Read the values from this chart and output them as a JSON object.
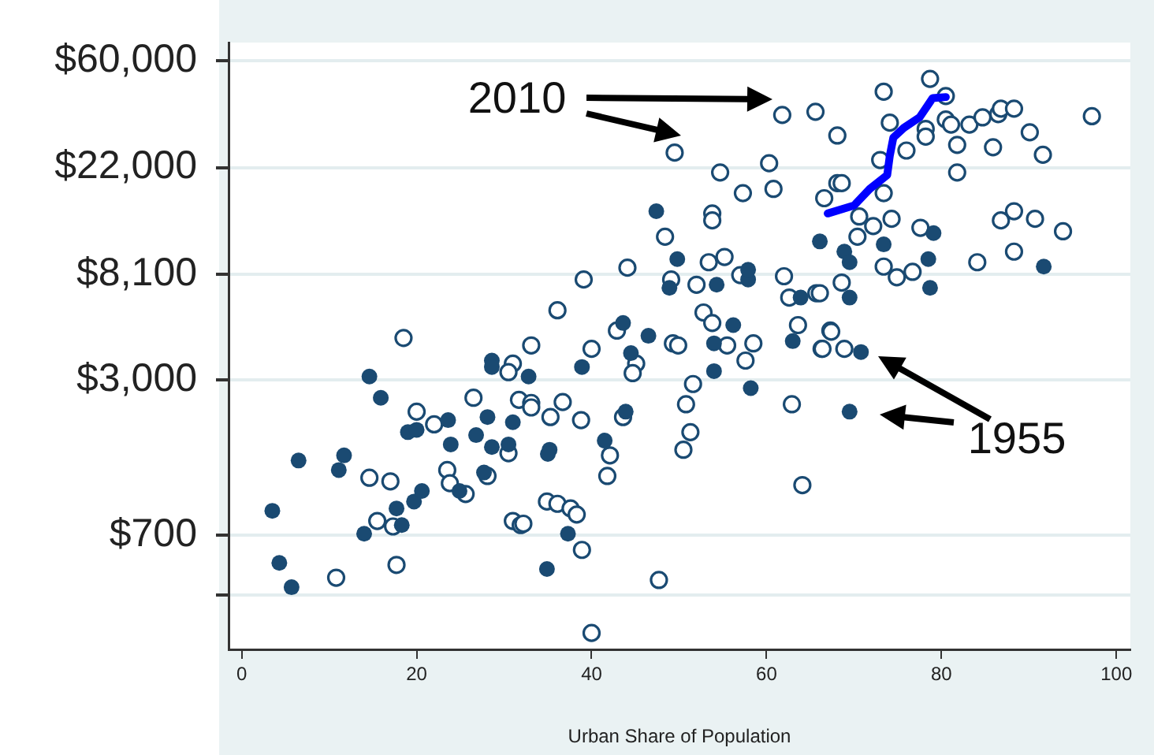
{
  "chart_data": {
    "type": "scatter",
    "xlabel": "Urban Share of Population",
    "xlim": [
      -1.5,
      101.6
    ],
    "xticks": [
      0,
      20,
      40,
      60,
      80,
      100
    ],
    "ylim": [
      240,
      71000
    ],
    "log": "y",
    "yticks": [
      {
        "value": 400,
        "label": null
      },
      {
        "value": 700,
        "label": "$700"
      },
      {
        "value": 3000,
        "label": "$3,000"
      },
      {
        "value": 8100,
        "label": "$8,100"
      },
      {
        "value": 22000,
        "label": "$22,000"
      },
      {
        "value": 60000,
        "label": "$60,000"
      }
    ],
    "grid": "y",
    "marker": "circle",
    "annotations": [
      "2010",
      "1955"
    ],
    "series": [
      {
        "type": "scatter",
        "color": "#1a4a72",
        "x": [
          18.5,
          33.1,
          31.0,
          30.5,
          26.5,
          31.7,
          33.1,
          33.1,
          20.0,
          22.0,
          30.5,
          14.6,
          17.0,
          23.5,
          23.8,
          25.6,
          28.1,
          15.5,
          17.3,
          31.0,
          31.9,
          17.7,
          10.8,
          39.1,
          49.1,
          52.0,
          62.0,
          62.6,
          65.7,
          36.1,
          52.8,
          53.8,
          42.9,
          63.6,
          67.3,
          40.0,
          49.3,
          49.9,
          55.5,
          58.5,
          66.3,
          45.1,
          44.7,
          57.6,
          51.6,
          36.7,
          35.3,
          38.8,
          43.6,
          50.8,
          62.9,
          51.3,
          50.5,
          42.1,
          41.8,
          64.1,
          34.9,
          36.1,
          37.6,
          38.3,
          32.2,
          38.9,
          47.7,
          40.0,
          86.8,
          88.3,
          90.7,
          93.9,
          88.3,
          84.1,
          77.6,
          74.3,
          72.2,
          70.4,
          73.4,
          74.9,
          76.7,
          68.6,
          66.1,
          67.4,
          66.4,
          68.9,
          49.5,
          48.4,
          44.1,
          61.8,
          65.6,
          73.4,
          78.7,
          80.5,
          74.1,
          68.1,
          80.5,
          81.1,
          83.2,
          84.7,
          86.5,
          86.8,
          88.3,
          97.2,
          90.1,
          91.6,
          85.9,
          81.8,
          81.8,
          78.2,
          78.2,
          76.0,
          73.0,
          73.4,
          68.1,
          68.6,
          66.6,
          60.3,
          60.8,
          57.3,
          54.7,
          53.8,
          53.8,
          70.6,
          53.4,
          55.2,
          57.0
        ],
        "values": [
          4450,
          4150,
          3500,
          3230,
          2540,
          2490,
          2420,
          2320,
          2230,
          1980,
          1510,
          1200,
          1160,
          1290,
          1140,
          1030,
          1220,
          800,
          760,
          800,
          770,
          530,
          470,
          7700,
          7700,
          7330,
          7940,
          6500,
          6770,
          5770,
          5650,
          5120,
          4770,
          5020,
          4770,
          4020,
          4230,
          4150,
          4150,
          4230,
          4020,
          3500,
          3200,
          3600,
          2890,
          2440,
          2120,
          2060,
          2120,
          2390,
          2390,
          1840,
          1560,
          1480,
          1220,
          1120,
          960,
          940,
          900,
          850,
          780,
          610,
          460,
          280,
          13400,
          14600,
          13600,
          12100,
          10000,
          9050,
          12500,
          13600,
          12700,
          11500,
          8690,
          7860,
          8270,
          7480,
          6770,
          4720,
          4020,
          4020,
          25300,
          11500,
          8600,
          36000,
          37100,
          44800,
          50500,
          43000,
          33500,
          29700,
          34500,
          32900,
          32900,
          35200,
          36300,
          38200,
          38200,
          35600,
          30600,
          24800,
          26600,
          27200,
          21000,
          31600,
          29400,
          25800,
          23600,
          17300,
          19000,
          19000,
          16500,
          22900,
          18000,
          17300,
          21000,
          14300,
          13400,
          13900,
          9050,
          9510,
          8020
        ]
      },
      {
        "type": "scatter",
        "color": "#1a4a72",
        "x": [
          3.5,
          4.3,
          5.7,
          6.5,
          11.7,
          11.1,
          14.6,
          15.9,
          14.0,
          17.7,
          18.3,
          19.7,
          20.6,
          19.0,
          20.0,
          23.6,
          23.9,
          26.8,
          28.1,
          28.6,
          30.5,
          31.0,
          28.6,
          28.6,
          32.8,
          27.7,
          24.9,
          48.9,
          54.3,
          57.9,
          63.9,
          43.6,
          46.5,
          56.2,
          54.0,
          63.0,
          44.5,
          38.9,
          54.0,
          58.2,
          43.9,
          41.5,
          35.2,
          35.0,
          37.3,
          34.9,
          79.1,
          73.4,
          68.9,
          69.5,
          78.5,
          91.7,
          78.7,
          69.5,
          70.8,
          69.5,
          66.1,
          47.4,
          49.8,
          57.9
        ],
        "values": [
          880,
          540,
          430,
          1410,
          1480,
          1290,
          3100,
          2540,
          710,
          900,
          770,
          960,
          1060,
          1840,
          1880,
          2060,
          1640,
          1790,
          2120,
          1600,
          1640,
          2020,
          3600,
          3390,
          3100,
          1260,
          1060,
          7120,
          7330,
          7700,
          6500,
          5120,
          4540,
          5020,
          4230,
          4320,
          3860,
          3390,
          3260,
          2780,
          2230,
          1700,
          1560,
          1500,
          710,
          510,
          11900,
          10700,
          10000,
          9050,
          9320,
          8690,
          7120,
          6500,
          3900,
          2230,
          11000,
          14600,
          9320,
          8430
        ]
      },
      {
        "type": "line",
        "color": "#0000ff",
        "marker": "none",
        "x": [
          67.0,
          70.0,
          71.8,
          73.8,
          74.1,
          74.5,
          75.7,
          77.5,
          79.0,
          80.5
        ],
        "values": [
          14300,
          15400,
          18000,
          20500,
          24600,
          29100,
          31900,
          35200,
          42200,
          42600
        ]
      }
    ]
  }
}
